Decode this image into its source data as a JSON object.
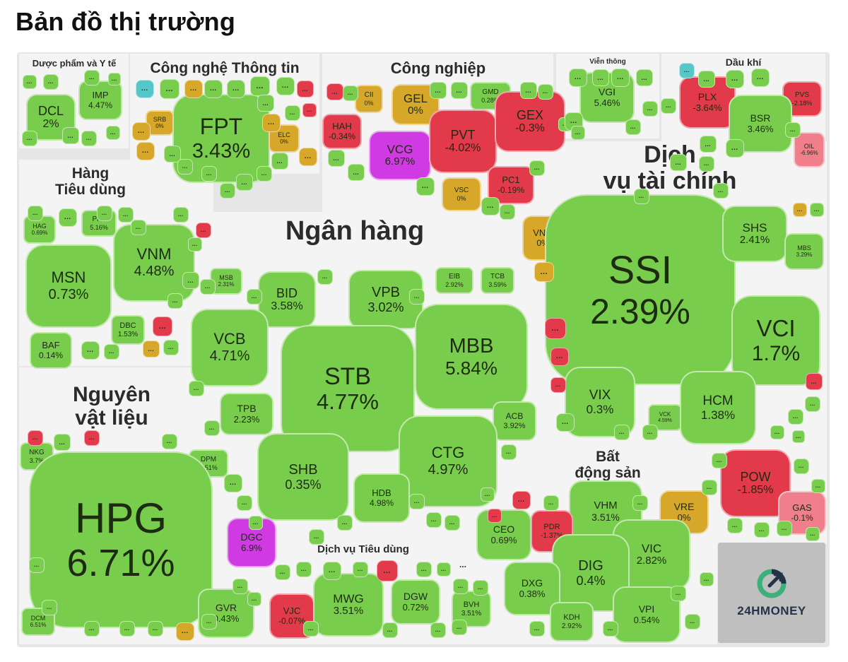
{
  "page": {
    "title": "Bản đồ thị trường",
    "brand": "24HMONEY"
  },
  "colors": {
    "up": "#79cd4c",
    "down": "#e23a4a",
    "ref": "#d7a72a",
    "ceiling": "#cf3ae3",
    "floor": "#56c7c9",
    "down_light": "#f07f8b"
  },
  "chart_data": {
    "type": "treemap",
    "title": "Bản đồ thị trường",
    "sectors": [
      {
        "name": "Dược phẩm và Y tế",
        "stocks": [
          {
            "ticker": "DCL",
            "change": "2%"
          },
          {
            "ticker": "IMP",
            "change": "4.47%"
          }
        ]
      },
      {
        "name": "Công nghệ Thông tin",
        "stocks": [
          {
            "ticker": "FPT",
            "change": "3.43%"
          },
          {
            "ticker": "SRB",
            "change": "0%"
          },
          {
            "ticker": "ELC",
            "change": "0%"
          }
        ]
      },
      {
        "name": "Công nghiệp",
        "stocks": [
          {
            "ticker": "CII",
            "change": "0%"
          },
          {
            "ticker": "GEL",
            "change": "0%"
          },
          {
            "ticker": "GMD",
            "change": "0.28%"
          },
          {
            "ticker": "HAH",
            "change": "-0.34%"
          },
          {
            "ticker": "VCG",
            "change": "6.97%"
          },
          {
            "ticker": "PVT",
            "change": "-4.02%"
          },
          {
            "ticker": "GEX",
            "change": "-0.3%"
          },
          {
            "ticker": "PC1",
            "change": "-0.19%"
          },
          {
            "ticker": "VSC",
            "change": "0%"
          }
        ]
      },
      {
        "name": "Viễn thông",
        "stocks": [
          {
            "ticker": "VGI",
            "change": "5.46%"
          }
        ]
      },
      {
        "name": "Dầu khí",
        "stocks": [
          {
            "ticker": "PLX",
            "change": "-3.64%"
          },
          {
            "ticker": "PVS",
            "change": "-2.18%"
          },
          {
            "ticker": "BSR",
            "change": "3.46%"
          },
          {
            "ticker": "OIL",
            "change": "-6.96%"
          }
        ]
      },
      {
        "name": "Hàng Tiêu dùng",
        "stocks": [
          {
            "ticker": "HAG",
            "change": "0.69%"
          },
          {
            "ticker": "PNJ",
            "change": "5.16%"
          },
          {
            "ticker": "MSN",
            "change": "0.73%"
          },
          {
            "ticker": "VNM",
            "change": "4.48%"
          },
          {
            "ticker": "DBC",
            "change": "1.53%"
          },
          {
            "ticker": "BAF",
            "change": "0.14%"
          }
        ]
      },
      {
        "name": "Ngân hàng",
        "stocks": [
          {
            "ticker": "MSB",
            "change": "2.31%"
          },
          {
            "ticker": "BID",
            "change": "3.58%"
          },
          {
            "ticker": "VPB",
            "change": "3.02%"
          },
          {
            "ticker": "EIB",
            "change": "2.92%"
          },
          {
            "ticker": "TCB",
            "change": "3.59%"
          },
          {
            "ticker": "VCB",
            "change": "4.71%"
          },
          {
            "ticker": "STB",
            "change": "4.77%"
          },
          {
            "ticker": "MBB",
            "change": "5.84%"
          },
          {
            "ticker": "TPB",
            "change": "2.23%"
          },
          {
            "ticker": "ACB",
            "change": "3.92%"
          },
          {
            "ticker": "SHB",
            "change": "0.35%"
          },
          {
            "ticker": "CTG",
            "change": "4.97%"
          },
          {
            "ticker": "HDB",
            "change": "4.98%"
          }
        ]
      },
      {
        "name": "Dịch vụ tài chính",
        "stocks": [
          {
            "ticker": "VND",
            "change": "0%"
          },
          {
            "ticker": "SSI",
            "change": "2.39%"
          },
          {
            "ticker": "SHS",
            "change": "2.41%"
          },
          {
            "ticker": "MBS",
            "change": "3.29%"
          },
          {
            "ticker": "VCI",
            "change": "1.7%"
          },
          {
            "ticker": "VIX",
            "change": "0.3%"
          },
          {
            "ticker": "VCK",
            "change": "4.59%"
          },
          {
            "ticker": "HCM",
            "change": "1.38%"
          }
        ]
      },
      {
        "name": "Nguyên vật liệu",
        "stocks": [
          {
            "ticker": "NKG",
            "change": "3.7%"
          },
          {
            "ticker": "DPM",
            "change": "5.51%"
          },
          {
            "ticker": "HPG",
            "change": "6.71%"
          },
          {
            "ticker": "DGC",
            "change": "6.9%"
          },
          {
            "ticker": "DCM",
            "change": "6.51%"
          },
          {
            "ticker": "GVR",
            "change": "0.43%"
          }
        ]
      },
      {
        "name": "Dịch vụ Tiêu dùng",
        "stocks": [
          {
            "ticker": "VJC",
            "change": "-0.07%"
          },
          {
            "ticker": "MWG",
            "change": "3.51%"
          },
          {
            "ticker": "DGW",
            "change": "0.72%"
          }
        ]
      },
      {
        "name": "...",
        "stocks": [
          {
            "ticker": "BVH",
            "change": "3.51%"
          }
        ]
      },
      {
        "name": "Bất động sản",
        "stocks": [
          {
            "ticker": "VHM",
            "change": "3.51%"
          },
          {
            "ticker": "VRE",
            "change": "0%"
          },
          {
            "ticker": "CEO",
            "change": "0.69%"
          },
          {
            "ticker": "PDR",
            "change": "-1.37%"
          },
          {
            "ticker": "VIC",
            "change": "2.82%"
          },
          {
            "ticker": "DIG",
            "change": "0.4%"
          },
          {
            "ticker": "DXG",
            "change": "0.38%"
          },
          {
            "ticker": "KDH",
            "change": "2.92%"
          },
          {
            "ticker": "VPI",
            "change": "0.54%"
          }
        ]
      },
      {
        "name": "...",
        "stocks": [
          {
            "ticker": "POW",
            "change": "-1.85%"
          },
          {
            "ticker": "GAS",
            "change": "-0.1%"
          }
        ]
      }
    ]
  }
}
